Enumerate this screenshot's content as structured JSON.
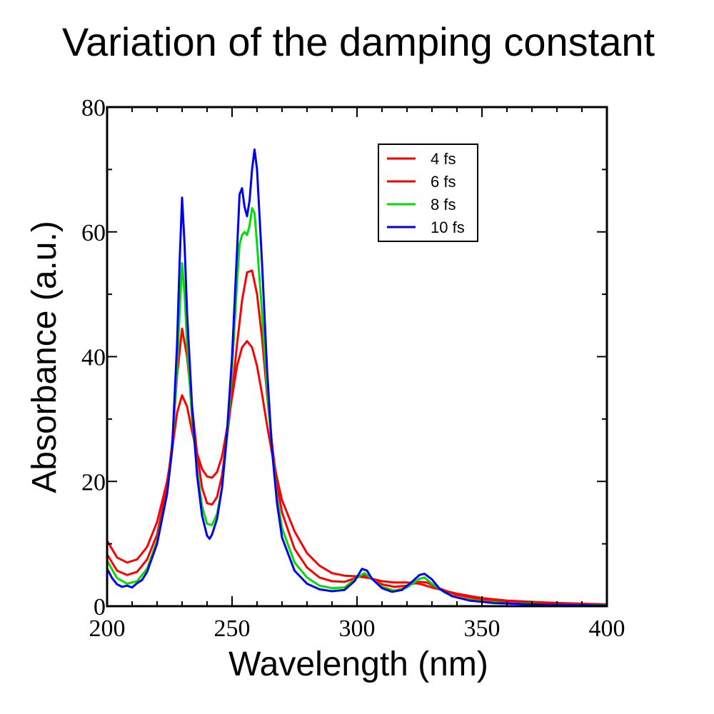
{
  "chart_data": {
    "type": "line",
    "title": "Variation of the damping constant",
    "xlabel": "Wavelength (nm)",
    "ylabel": "Absorbance (a.u.)",
    "xlim": [
      200,
      400
    ],
    "ylim": [
      0,
      80
    ],
    "x_ticks": [
      200,
      250,
      300,
      350,
      400
    ],
    "y_ticks": [
      0,
      20,
      40,
      60,
      80
    ],
    "grid": false,
    "legend_position": "top-right",
    "series": [
      {
        "name": "4 fs",
        "color": "#ff0000",
        "points": [
          [
            200,
            10.5
          ],
          [
            204,
            7.8
          ],
          [
            208,
            7.0
          ],
          [
            212,
            7.5
          ],
          [
            216,
            9.5
          ],
          [
            220,
            13.5
          ],
          [
            224,
            20
          ],
          [
            226,
            25
          ],
          [
            228,
            31
          ],
          [
            230,
            33.8
          ],
          [
            232,
            32
          ],
          [
            234,
            28
          ],
          [
            236,
            24.5
          ],
          [
            238,
            22
          ],
          [
            240,
            20.8
          ],
          [
            242,
            20.6
          ],
          [
            244,
            21.5
          ],
          [
            246,
            24
          ],
          [
            248,
            28.5
          ],
          [
            250,
            33.5
          ],
          [
            252,
            38.5
          ],
          [
            254,
            41.5
          ],
          [
            256,
            42.5
          ],
          [
            258,
            41.5
          ],
          [
            260,
            38.5
          ],
          [
            262,
            34
          ],
          [
            264,
            29
          ],
          [
            266,
            24.5
          ],
          [
            268,
            20.5
          ],
          [
            270,
            17
          ],
          [
            275,
            12
          ],
          [
            280,
            8.5
          ],
          [
            285,
            6.5
          ],
          [
            290,
            5.3
          ],
          [
            295,
            4.9
          ],
          [
            300,
            4.8
          ],
          [
            305,
            4.5
          ],
          [
            310,
            4.0
          ],
          [
            315,
            3.8
          ],
          [
            320,
            3.8
          ],
          [
            325,
            3.6
          ],
          [
            330,
            3.0
          ],
          [
            340,
            2.0
          ],
          [
            350,
            1.3
          ],
          [
            360,
            0.9
          ],
          [
            375,
            0.6
          ],
          [
            390,
            0.4
          ],
          [
            400,
            0.3
          ]
        ]
      },
      {
        "name": "6 fs",
        "color": "#ff0000",
        "points": [
          [
            200,
            8.3
          ],
          [
            204,
            5.7
          ],
          [
            208,
            5.0
          ],
          [
            212,
            5.5
          ],
          [
            216,
            7.5
          ],
          [
            220,
            11.5
          ],
          [
            224,
            19
          ],
          [
            226,
            26
          ],
          [
            228,
            37
          ],
          [
            230,
            44.5
          ],
          [
            232,
            40
          ],
          [
            234,
            32
          ],
          [
            236,
            24.5
          ],
          [
            238,
            19
          ],
          [
            240,
            16.5
          ],
          [
            242,
            16.3
          ],
          [
            244,
            17.5
          ],
          [
            246,
            21
          ],
          [
            248,
            27
          ],
          [
            250,
            34
          ],
          [
            252,
            42
          ],
          [
            254,
            49
          ],
          [
            256,
            53.5
          ],
          [
            258,
            53.8
          ],
          [
            260,
            50
          ],
          [
            262,
            43
          ],
          [
            264,
            34
          ],
          [
            266,
            26
          ],
          [
            268,
            19.5
          ],
          [
            270,
            15
          ],
          [
            275,
            9.2
          ],
          [
            280,
            6.2
          ],
          [
            285,
            4.6
          ],
          [
            290,
            4.0
          ],
          [
            295,
            3.9
          ],
          [
            300,
            4.6
          ],
          [
            303,
            5.0
          ],
          [
            306,
            4.4
          ],
          [
            310,
            3.5
          ],
          [
            315,
            3.1
          ],
          [
            320,
            3.3
          ],
          [
            325,
            3.9
          ],
          [
            328,
            3.8
          ],
          [
            332,
            3.0
          ],
          [
            340,
            1.8
          ],
          [
            350,
            1.1
          ],
          [
            360,
            0.7
          ],
          [
            375,
            0.45
          ],
          [
            390,
            0.3
          ],
          [
            400,
            0.2
          ]
        ]
      },
      {
        "name": "8 fs",
        "color": "#00dd00",
        "points": [
          [
            200,
            7.3
          ],
          [
            204,
            4.5
          ],
          [
            208,
            3.6
          ],
          [
            212,
            4.0
          ],
          [
            216,
            6.0
          ],
          [
            220,
            10.5
          ],
          [
            224,
            18
          ],
          [
            226,
            25
          ],
          [
            228,
            38
          ],
          [
            229,
            47
          ],
          [
            230,
            55
          ],
          [
            231,
            50
          ],
          [
            232,
            42
          ],
          [
            234,
            30
          ],
          [
            236,
            22
          ],
          [
            238,
            16
          ],
          [
            240,
            13.2
          ],
          [
            242,
            13.0
          ],
          [
            244,
            14.8
          ],
          [
            246,
            19
          ],
          [
            248,
            27
          ],
          [
            250,
            38
          ],
          [
            252,
            52
          ],
          [
            253,
            58
          ],
          [
            254,
            59.5
          ],
          [
            255,
            60
          ],
          [
            256,
            59.5
          ],
          [
            257,
            61
          ],
          [
            258,
            63.8
          ],
          [
            259,
            63
          ],
          [
            260,
            58
          ],
          [
            262,
            47
          ],
          [
            264,
            35
          ],
          [
            266,
            25
          ],
          [
            268,
            17.5
          ],
          [
            270,
            12.5
          ],
          [
            275,
            7.0
          ],
          [
            280,
            4.6
          ],
          [
            285,
            3.3
          ],
          [
            290,
            2.9
          ],
          [
            295,
            3.0
          ],
          [
            300,
            4.6
          ],
          [
            303,
            5.3
          ],
          [
            306,
            4.4
          ],
          [
            310,
            3.1
          ],
          [
            315,
            2.5
          ],
          [
            320,
            3.0
          ],
          [
            325,
            4.4
          ],
          [
            327,
            4.6
          ],
          [
            330,
            3.6
          ],
          [
            335,
            2.2
          ],
          [
            340,
            1.4
          ],
          [
            350,
            0.8
          ],
          [
            360,
            0.5
          ],
          [
            375,
            0.3
          ],
          [
            400,
            0.15
          ]
        ]
      },
      {
        "name": "10 fs",
        "color": "#0000ee",
        "points": [
          [
            200,
            6.0
          ],
          [
            202,
            4.5
          ],
          [
            204,
            3.5
          ],
          [
            206,
            3.1
          ],
          [
            208,
            3.3
          ],
          [
            210,
            3.0
          ],
          [
            212,
            3.7
          ],
          [
            214,
            4.2
          ],
          [
            216,
            5.5
          ],
          [
            220,
            10
          ],
          [
            224,
            18
          ],
          [
            226,
            25
          ],
          [
            228,
            42
          ],
          [
            229,
            55
          ],
          [
            230,
            65.5
          ],
          [
            231,
            58
          ],
          [
            232,
            47
          ],
          [
            234,
            32
          ],
          [
            236,
            21
          ],
          [
            238,
            14.5
          ],
          [
            240,
            11.3
          ],
          [
            241,
            10.8
          ],
          [
            242,
            11.5
          ],
          [
            244,
            14
          ],
          [
            246,
            19
          ],
          [
            248,
            28
          ],
          [
            250,
            40
          ],
          [
            252,
            57
          ],
          [
            253,
            66
          ],
          [
            254,
            67
          ],
          [
            255,
            64
          ],
          [
            256,
            62.5
          ],
          [
            257,
            65
          ],
          [
            258,
            70
          ],
          [
            259,
            73.2
          ],
          [
            260,
            70
          ],
          [
            262,
            55
          ],
          [
            264,
            38
          ],
          [
            266,
            25
          ],
          [
            268,
            16.5
          ],
          [
            270,
            11
          ],
          [
            275,
            5.7
          ],
          [
            280,
            3.6
          ],
          [
            285,
            2.7
          ],
          [
            290,
            2.4
          ],
          [
            295,
            2.6
          ],
          [
            299,
            4.0
          ],
          [
            302,
            6.0
          ],
          [
            304,
            5.7
          ],
          [
            306,
            4.4
          ],
          [
            310,
            2.9
          ],
          [
            314,
            2.3
          ],
          [
            318,
            2.6
          ],
          [
            322,
            3.9
          ],
          [
            325,
            5.0
          ],
          [
            327,
            5.2
          ],
          [
            330,
            4.3
          ],
          [
            333,
            2.8
          ],
          [
            338,
            1.6
          ],
          [
            345,
            0.9
          ],
          [
            355,
            0.5
          ],
          [
            370,
            0.3
          ],
          [
            400,
            0.1
          ]
        ]
      }
    ]
  }
}
